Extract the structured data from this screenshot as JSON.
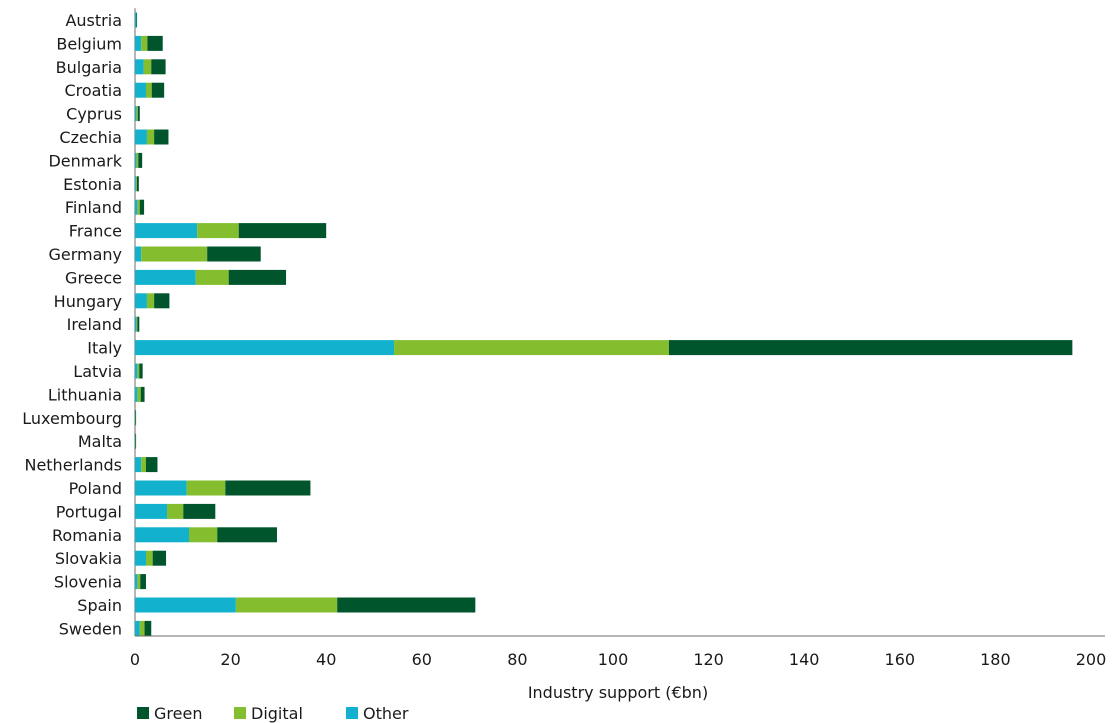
{
  "chart_data": {
    "type": "bar",
    "orientation": "horizontal",
    "stacked": true,
    "categories": [
      "Austria",
      "Belgium",
      "Bulgaria",
      "Croatia",
      "Cyprus",
      "Czechia",
      "Denmark",
      "Estonia",
      "Finland",
      "France",
      "Germany",
      "Greece",
      "Hungary",
      "Ireland",
      "Italy",
      "Latvia",
      "Lithuania",
      "Luxembourg",
      "Malta",
      "Netherlands",
      "Poland",
      "Portugal",
      "Romania",
      "Slovakia",
      "Slovenia",
      "Spain",
      "Sweden"
    ],
    "series": [
      {
        "name": "Other",
        "color": "#12b2cf",
        "values": [
          0.3,
          1.3,
          1.8,
          2.3,
          0.3,
          2.5,
          0.3,
          0.2,
          0.5,
          13.0,
          1.3,
          12.7,
          2.5,
          0.3,
          54.2,
          0.5,
          0.5,
          0.05,
          0.05,
          1.3,
          10.8,
          6.7,
          11.3,
          2.3,
          0.5,
          21.1,
          1.0
        ]
      },
      {
        "name": "Digital",
        "color": "#84bd2d",
        "values": [
          0.0,
          1.3,
          1.6,
          1.2,
          0.3,
          1.5,
          0.4,
          0.2,
          0.5,
          8.7,
          13.8,
          6.9,
          1.5,
          0.2,
          57.5,
          0.4,
          0.7,
          0.05,
          0.05,
          1.0,
          8.1,
          3.4,
          5.9,
          1.4,
          0.6,
          21.2,
          1.0
        ]
      },
      {
        "name": "Green",
        "color": "#00552d",
        "values": [
          0.0,
          3.2,
          3.0,
          2.6,
          0.4,
          3.0,
          0.8,
          0.4,
          0.9,
          18.3,
          11.2,
          12.0,
          3.2,
          0.4,
          84.4,
          0.7,
          0.8,
          0.1,
          0.1,
          2.4,
          17.8,
          6.7,
          12.5,
          2.8,
          1.2,
          28.9,
          1.4
        ]
      }
    ],
    "legend_order": [
      "Green",
      "Digital",
      "Other"
    ],
    "xlabel": "Industry support (€bn)",
    "ylabel": "",
    "xlim": [
      0,
      200
    ],
    "xticks": [
      0,
      20,
      40,
      60,
      80,
      100,
      120,
      140,
      160,
      180,
      200
    ],
    "grid": false,
    "legend_position": "bottom-left"
  }
}
